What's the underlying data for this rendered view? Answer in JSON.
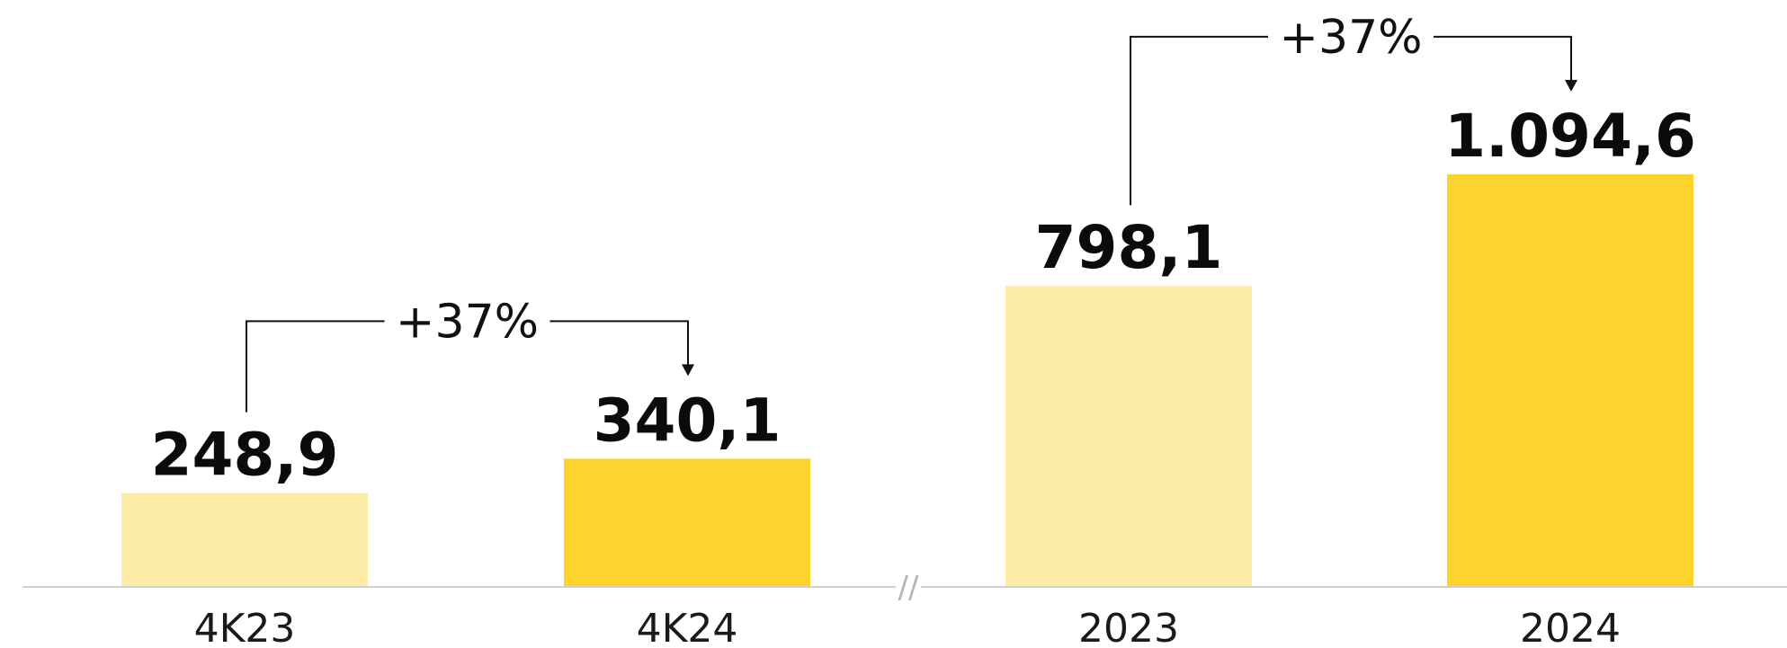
{
  "chart_data": {
    "type": "bar",
    "categories": [
      "4K23",
      "4K24",
      "2023",
      "2024"
    ],
    "values": [
      248.9,
      340.1,
      798.1,
      1094.6
    ],
    "value_labels": [
      "248,9",
      "340,1",
      "798,1",
      "1.094,6"
    ],
    "title": "",
    "xlabel": "",
    "ylabel": "",
    "ylim": [
      0,
      1150
    ],
    "grid": false,
    "axis_break_mark": "//",
    "colors": {
      "previous_period": "#FDECA7",
      "current_period": "#FDD32E",
      "baseline": "#d0d0d0",
      "connector": "#111111"
    },
    "annotations": [
      {
        "from_category": "4K23",
        "to_category": "4K24",
        "label": "+37%"
      },
      {
        "from_category": "2023",
        "to_category": "2024",
        "label": "+37%"
      }
    ]
  }
}
